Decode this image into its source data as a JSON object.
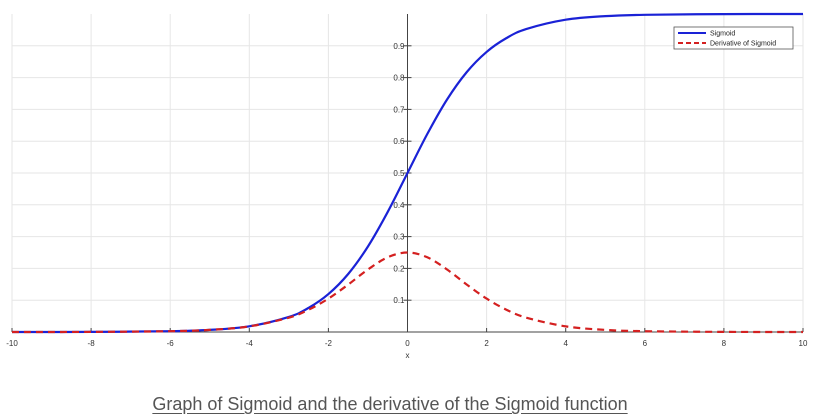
{
  "caption": "Graph of Sigmoid and the derivative of the Sigmoid function",
  "chart_data": {
    "type": "line",
    "title": "",
    "xlabel": "x",
    "ylabel": "",
    "xlim": [
      -10,
      10
    ],
    "ylim": [
      0,
      1
    ],
    "grid": true,
    "legend_position": "top-right",
    "x_ticks": [
      -10,
      -8,
      -6,
      -4,
      -2,
      0,
      2,
      4,
      6,
      8,
      10
    ],
    "y_ticks": [
      0.1,
      0.2,
      0.3,
      0.4,
      0.5,
      0.6,
      0.7,
      0.8,
      0.9
    ],
    "series": [
      {
        "name": "Sigmoid",
        "color": "#1a22d6",
        "style": "solid",
        "x": [
          -10,
          -8,
          -6,
          -5,
          -4,
          -3,
          -2.5,
          -2,
          -1.5,
          -1,
          -0.5,
          0,
          0.5,
          1,
          1.5,
          2,
          2.5,
          3,
          4,
          5,
          6,
          8,
          10
        ],
        "values": [
          4.54e-05,
          0.000335,
          0.00247,
          0.00669,
          0.018,
          0.0474,
          0.0759,
          0.1192,
          0.1824,
          0.2689,
          0.3775,
          0.5,
          0.6225,
          0.7311,
          0.8176,
          0.8808,
          0.9241,
          0.9526,
          0.982,
          0.9933,
          0.9975,
          0.9997,
          0.99995
        ]
      },
      {
        "name": "Derivative of Sigmoid",
        "color": "#d42020",
        "style": "dashed",
        "x": [
          -10,
          -8,
          -6,
          -5,
          -4,
          -3,
          -2.5,
          -2,
          -1.5,
          -1,
          -0.5,
          0,
          0.5,
          1,
          1.5,
          2,
          2.5,
          3,
          4,
          5,
          6,
          8,
          10
        ],
        "values": [
          4.54e-05,
          0.000335,
          0.00247,
          0.00665,
          0.0177,
          0.0452,
          0.0701,
          0.105,
          0.1491,
          0.1966,
          0.235,
          0.25,
          0.235,
          0.1966,
          0.1491,
          0.105,
          0.0701,
          0.0452,
          0.0177,
          0.00665,
          0.00247,
          0.000335,
          4.54e-05
        ]
      }
    ]
  }
}
